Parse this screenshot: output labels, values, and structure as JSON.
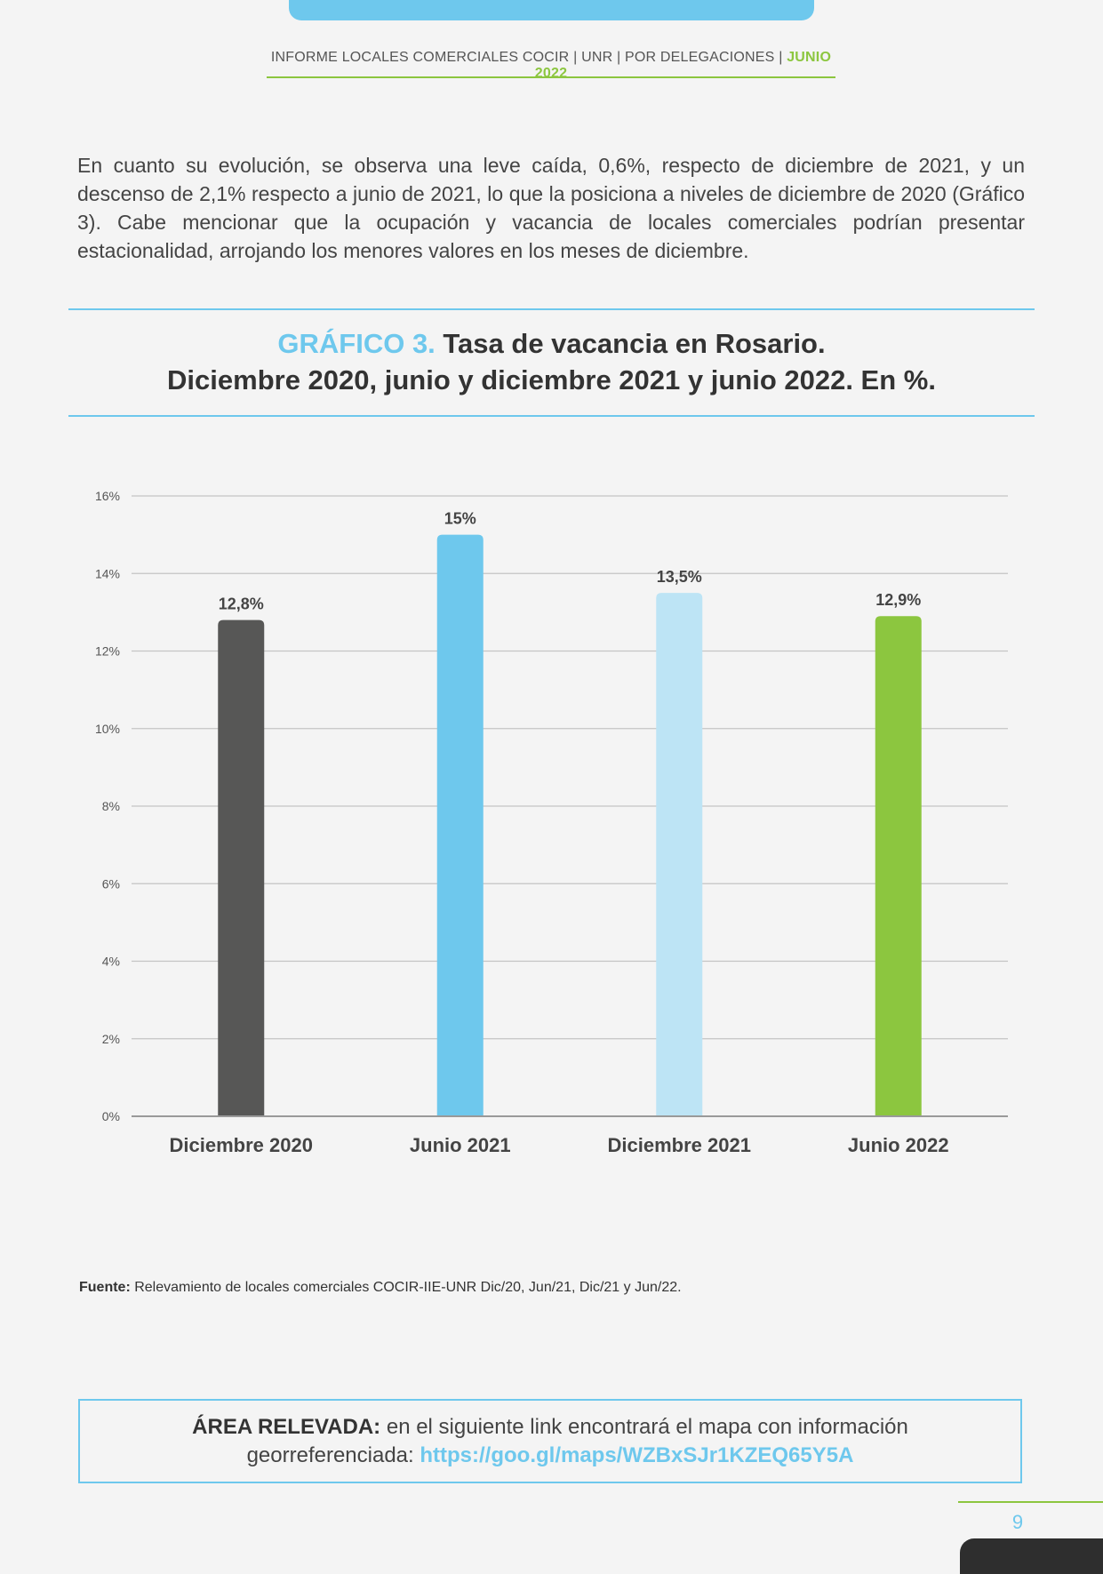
{
  "header": {
    "text": "INFORME LOCALES COMERCIALES COCIR | UNR | POR DELEGACIONES | ",
    "accent": "JUNIO 2022"
  },
  "intro": "En cuanto su evolución, se observa una leve caída, 0,6%, respecto de diciembre de 2021, y un descenso de 2,1% respecto a junio de 2021, lo que la posiciona a niveles de diciembre de 2020 (Gráfico 3). Cabe mencionar que la ocupación y vacancia de locales comerciales podrían presentar estacionalidad, arrojando los menores valores en los meses de diciembre.",
  "chart_title": {
    "number": "GRÁFICO 3.",
    "line1": "Tasa de vacancia en Rosario.",
    "line2": "Diciembre 2020, junio y diciembre 2021 y junio 2022. En %."
  },
  "chart_data": {
    "type": "bar",
    "categories": [
      "Diciembre 2020",
      "Junio 2021",
      "Diciembre 2021",
      "Junio 2022"
    ],
    "values": [
      12.8,
      15,
      13.5,
      12.9
    ],
    "data_labels": [
      "12,8%",
      "15%",
      "13,5%",
      "12,9%"
    ],
    "colors": [
      "#575756",
      "#6ec8ed",
      "#bde4f5",
      "#8cc63f"
    ],
    "ylim": [
      0,
      16
    ],
    "yticks": [
      0,
      2,
      4,
      6,
      8,
      10,
      12,
      14,
      16
    ],
    "ytick_labels": [
      "0%",
      "2%",
      "4%",
      "6%",
      "8%",
      "10%",
      "12%",
      "14%",
      "16%"
    ],
    "grid": true
  },
  "source": {
    "label": "Fuente:",
    "text": " Relevamiento de locales comerciales COCIR-IIE-UNR Dic/20, Jun/21, Dic/21 y Jun/22."
  },
  "area": {
    "label": "ÁREA RELEVADA:",
    "text1": " en el siguiente link encontrará el mapa con información",
    "text2": "georreferenciada: ",
    "link": "https://goo.gl/maps/WZBxSJr1KZEQ65Y5A"
  },
  "page_number": "9"
}
